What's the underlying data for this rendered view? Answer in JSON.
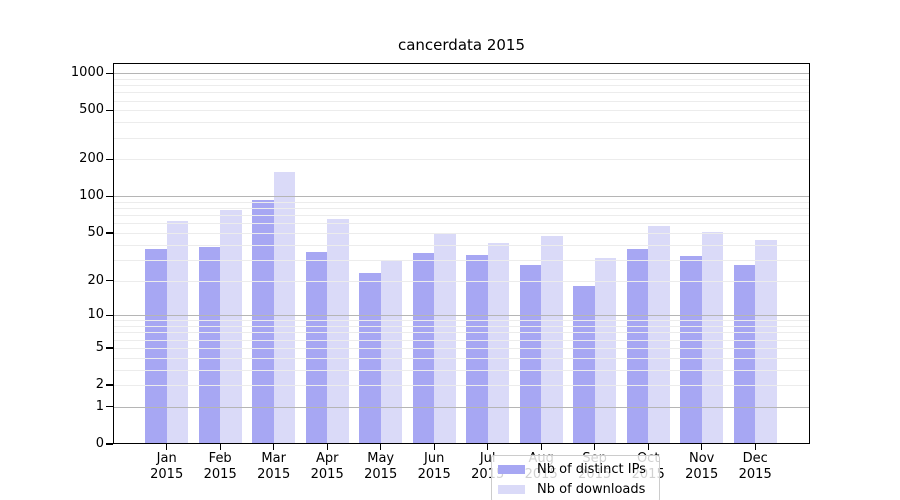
{
  "chart_data": {
    "type": "bar",
    "title": "cancerdata 2015",
    "categories": [
      "Jan",
      "Feb",
      "Mar",
      "Apr",
      "May",
      "Jun",
      "Jul",
      "Aug",
      "Sep",
      "Oct",
      "Nov",
      "Dec"
    ],
    "category_year": "2015",
    "series": [
      {
        "name": "Nb of distinct IPs",
        "color": "#a7a7f3",
        "values": [
          37,
          38,
          94,
          35,
          23,
          34,
          33,
          27,
          18,
          37,
          32,
          27
        ]
      },
      {
        "name": "Nb of downloads",
        "color": "#dadaf8",
        "values": [
          63,
          78,
          158,
          65,
          29,
          50,
          41,
          47,
          31,
          57,
          51,
          44
        ]
      }
    ],
    "yscale": "log-like (position proportional to log10(1+value))",
    "ylim": [
      0,
      1210
    ],
    "y_ticks": [
      0,
      1,
      2,
      5,
      10,
      20,
      50,
      100,
      200,
      500,
      1000
    ],
    "grid": {
      "major_values": [
        1,
        10,
        100,
        1000
      ],
      "minor_values": [
        2,
        3,
        4,
        5,
        6,
        7,
        8,
        9,
        20,
        30,
        40,
        50,
        60,
        70,
        80,
        90,
        200,
        300,
        400,
        500,
        600,
        700,
        800,
        900
      ],
      "major_color": "#b5b5b5",
      "minor_color": "#ececec"
    },
    "legend": {
      "position": "lower-center-inside"
    }
  }
}
